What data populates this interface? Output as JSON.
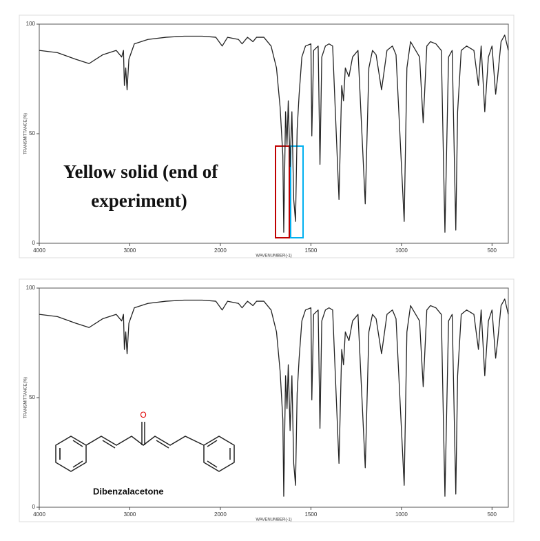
{
  "chart_data": [
    {
      "type": "line",
      "x_label": "WAVENUMBER(-1)",
      "y_label": "TRANSMITTANCE(%)",
      "annotations": [
        "Yellow solid (end of",
        "experiment)"
      ],
      "x": [
        4000,
        3800,
        3600,
        3450,
        3300,
        3150,
        3090,
        3070,
        3060,
        3045,
        3030,
        3010,
        2950,
        2800,
        2600,
        2400,
        2200,
        2050,
        1990,
        1960,
        1900,
        1880,
        1850,
        1820,
        1800,
        1760,
        1720,
        1690,
        1670,
        1655,
        1650,
        1640,
        1632,
        1625,
        1615,
        1605,
        1595,
        1585,
        1576,
        1565,
        1550,
        1530,
        1500,
        1495,
        1485,
        1460,
        1450,
        1440,
        1420,
        1400,
        1380,
        1345,
        1330,
        1320,
        1310,
        1290,
        1270,
        1240,
        1200,
        1180,
        1160,
        1140,
        1110,
        1080,
        1050,
        1030,
        985,
        970,
        950,
        900,
        880,
        860,
        840,
        810,
        780,
        760,
        740,
        720,
        700,
        690,
        670,
        640,
        600,
        575,
        560,
        540,
        520,
        500,
        480,
        470,
        450,
        430,
        410
      ],
      "series": [
        {
          "color": "#222222",
          "values": [
            88,
            87,
            84,
            82,
            86,
            88,
            85,
            88,
            72,
            80,
            70,
            84,
            91,
            93,
            94,
            94.5,
            94.5,
            94,
            90,
            94,
            93,
            91,
            94,
            92,
            94,
            94,
            90,
            80,
            62,
            40,
            5,
            60,
            45,
            65,
            35,
            60,
            20,
            10,
            52,
            68,
            85,
            90,
            91,
            49,
            88,
            90,
            36,
            85,
            90,
            91,
            90,
            20,
            72,
            65,
            80,
            76,
            85,
            88,
            18,
            80,
            88,
            86,
            70,
            88,
            90,
            86,
            10,
            80,
            92,
            85,
            55,
            90,
            92,
            91,
            88,
            5,
            85,
            88,
            6,
            60,
            88,
            90,
            88,
            72,
            90,
            60,
            85,
            90,
            68,
            75,
            92,
            95,
            88
          ]
        }
      ],
      "xlim": [
        4000,
        410
      ],
      "xticks": [
        4000,
        3000,
        2000,
        1500,
        1000,
        500
      ],
      "ylim": [
        0,
        100
      ],
      "yticks": [
        0,
        50,
        100
      ]
    },
    {
      "type": "line",
      "x_label": "WAVENUMBER(-1)",
      "y_label": "TRANSMITTANCE(%)",
      "annotations": [
        "O",
        "Dibenzalacetone"
      ],
      "x": [
        4000,
        3800,
        3600,
        3450,
        3300,
        3150,
        3090,
        3070,
        3060,
        3045,
        3030,
        3010,
        2950,
        2800,
        2600,
        2400,
        2200,
        2050,
        1990,
        1960,
        1900,
        1880,
        1850,
        1820,
        1800,
        1760,
        1720,
        1690,
        1670,
        1655,
        1650,
        1640,
        1632,
        1625,
        1615,
        1605,
        1595,
        1585,
        1576,
        1565,
        1550,
        1530,
        1500,
        1495,
        1485,
        1460,
        1450,
        1440,
        1420,
        1400,
        1380,
        1345,
        1330,
        1320,
        1310,
        1290,
        1270,
        1240,
        1200,
        1180,
        1160,
        1140,
        1110,
        1080,
        1050,
        1030,
        985,
        970,
        950,
        900,
        880,
        860,
        840,
        810,
        780,
        760,
        740,
        720,
        700,
        690,
        670,
        640,
        600,
        575,
        560,
        540,
        520,
        500,
        480,
        470,
        450,
        430,
        410
      ],
      "series": [
        {
          "color": "#222222",
          "values": [
            88,
            87,
            84,
            82,
            86,
            88,
            85,
            88,
            72,
            80,
            70,
            84,
            91,
            93,
            94,
            94.5,
            94.5,
            94,
            90,
            94,
            93,
            91,
            94,
            92,
            94,
            94,
            90,
            80,
            62,
            40,
            5,
            60,
            45,
            65,
            35,
            60,
            20,
            10,
            52,
            68,
            85,
            90,
            91,
            49,
            88,
            90,
            36,
            85,
            90,
            91,
            90,
            20,
            72,
            65,
            80,
            76,
            85,
            88,
            18,
            80,
            88,
            86,
            70,
            88,
            90,
            86,
            10,
            80,
            92,
            85,
            55,
            90,
            92,
            91,
            88,
            5,
            85,
            88,
            6,
            60,
            88,
            90,
            88,
            72,
            90,
            60,
            85,
            90,
            68,
            75,
            92,
            95,
            88
          ]
        }
      ],
      "xlim": [
        4000,
        410
      ],
      "xticks": [
        4000,
        3000,
        2000,
        1500,
        1000,
        500
      ],
      "ylim": [
        0,
        100
      ],
      "yticks": [
        0,
        50,
        100
      ]
    }
  ]
}
